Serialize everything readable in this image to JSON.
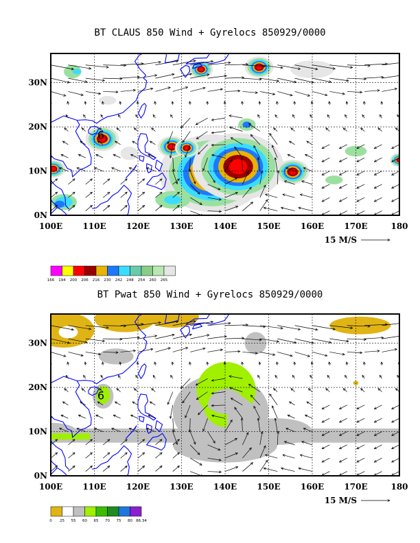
{
  "panels": [
    {
      "title": "BT CLAUS 850 Wind + Gyrelocs 850929/0000",
      "x_ticks": [
        "100E",
        "110E",
        "120E",
        "130E",
        "140E",
        "150E",
        "160E",
        "170E",
        "180"
      ],
      "y_ticks": [
        "0N",
        "10N",
        "20N",
        "30N"
      ],
      "scale_label": "15 M/S",
      "storm_marker": "6",
      "colorbar": {
        "labels": [
          "166",
          "194",
          "200",
          "206",
          "216",
          "230",
          "242",
          "248",
          "254",
          "260",
          "265"
        ],
        "colors": [
          "#ff00ff",
          "#ffff00",
          "#ff0000",
          "#990000",
          "#e8b400",
          "#1e78ff",
          "#3cdcff",
          "#66ccaa",
          "#88cc88",
          "#b8e8b0",
          "#e6e6e6"
        ]
      }
    },
    {
      "title": "BT Pwat 850 Wind + Gyrelocs 850929/0000",
      "x_ticks": [
        "100E",
        "110E",
        "120E",
        "130E",
        "140E",
        "150E",
        "160E",
        "170E",
        "180"
      ],
      "y_ticks": [
        "0N",
        "10N",
        "20N",
        "30N"
      ],
      "scale_label": "15 M/S",
      "storm_marker": "6",
      "colorbar": {
        "labels": [
          "0",
          "25",
          "55",
          "60",
          "65",
          "70",
          "75",
          "80",
          "86.34"
        ],
        "colors": [
          "#e0b414",
          "#ffffff",
          "#c0c0c0",
          "#a0f000",
          "#3cbe00",
          "#1e8c1e",
          "#1e78dc",
          "#8c1ed2"
        ]
      }
    }
  ],
  "colors": {
    "coast": "#0000ff",
    "frame": "#000000"
  }
}
